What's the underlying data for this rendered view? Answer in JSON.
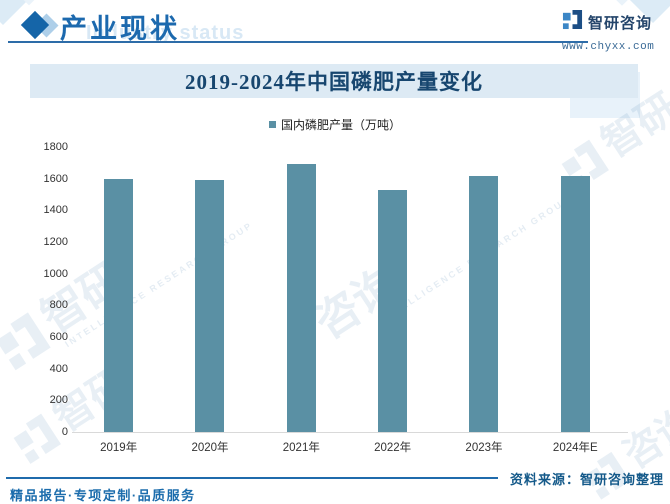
{
  "header": {
    "title": "产业现状",
    "watermark_en": "Industry status",
    "brand_name": "智研咨询",
    "brand_site": "www.chyxx.com"
  },
  "chart_data": {
    "type": "bar",
    "title": "2019-2024年中国磷肥产量变化",
    "legend": "国内磷肥产量（万吨）",
    "categories": [
      "2019年",
      "2020年",
      "2021年",
      "2022年",
      "2023年",
      "2024年E"
    ],
    "values": [
      1600,
      1590,
      1690,
      1530,
      1620,
      1620
    ],
    "ylim": [
      0,
      1800
    ],
    "ytick_step": 200,
    "grid": false,
    "legend_position": "top",
    "bar_color": "#5a90a4"
  },
  "watermarks": {
    "brand": "智研咨询",
    "brand_short_left": "智研",
    "brand_short_right": "咨询",
    "brand_en": "INTELLIGENCE RESEARCH GROUP"
  },
  "source_note": "资料来源：智研咨询整理",
  "footer": {
    "slogan": "精品报告·专项定制·品质服务"
  },
  "colors": {
    "accent_blue": "#1c69ae",
    "bar": "#5a90a4",
    "banner_bg": "#ddeaf4",
    "banner_text": "#17466f",
    "source_text": "#155a8a"
  }
}
